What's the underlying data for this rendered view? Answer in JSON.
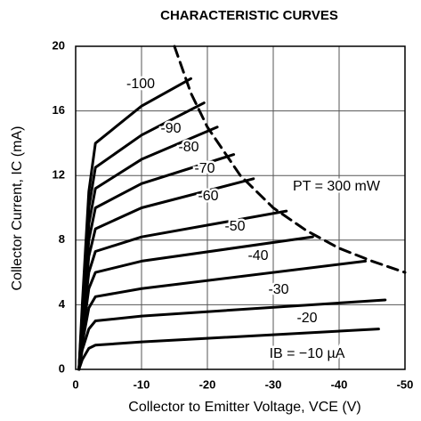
{
  "chart_data": {
    "type": "line",
    "title": "CHARACTERISTIC CURVES",
    "x_label": "Collector to Emitter Voltage, VCE (V)",
    "y_label": "Collector Current, IC (mA)",
    "xlim": [
      0,
      -50
    ],
    "xticks": [
      0,
      -10,
      -20,
      -30,
      -40,
      -50
    ],
    "ylim": [
      0,
      20
    ],
    "yticks": [
      0,
      4,
      8,
      12,
      16,
      20
    ],
    "grid": true,
    "series": [
      {
        "name": "-100",
        "color": "#000000",
        "x": [
          -0.5,
          -1,
          -2,
          -3,
          -10,
          -17.5
        ],
        "values": [
          0,
          4,
          11,
          14,
          16.3,
          18
        ]
      },
      {
        "name": "-90",
        "color": "#000000",
        "x": [
          -0.5,
          -1,
          -2,
          -3,
          -10,
          -19.5
        ],
        "values": [
          0,
          3.5,
          10,
          12.5,
          14.5,
          16.5
        ]
      },
      {
        "name": "-80",
        "color": "#000000",
        "x": [
          -0.5,
          -1,
          -2,
          -3,
          -10,
          -21.5
        ],
        "values": [
          0,
          3.2,
          9,
          11.2,
          13,
          15
        ]
      },
      {
        "name": "-70",
        "color": "#000000",
        "x": [
          -0.5,
          -1,
          -2,
          -3,
          -10,
          -24
        ],
        "values": [
          0,
          3,
          8,
          10,
          11.5,
          13.3
        ]
      },
      {
        "name": "-60",
        "color": "#000000",
        "x": [
          -0.5,
          -1,
          -2,
          -3,
          -10,
          -27
        ],
        "values": [
          0,
          2.7,
          7,
          8.7,
          10,
          11.8
        ]
      },
      {
        "name": "-50",
        "color": "#000000",
        "x": [
          -0.5,
          -1,
          -2,
          -3,
          -10,
          -32
        ],
        "values": [
          0,
          2.4,
          6,
          7.3,
          8.2,
          9.8
        ]
      },
      {
        "name": "-40",
        "color": "#000000",
        "x": [
          -0.5,
          -1,
          -2,
          -3,
          -10,
          -36
        ],
        "values": [
          0,
          2,
          5,
          6,
          6.7,
          8.2
        ]
      },
      {
        "name": "-30",
        "color": "#000000",
        "x": [
          -0.5,
          -1,
          -2,
          -3,
          -10,
          -44
        ],
        "values": [
          0,
          1.6,
          3.8,
          4.5,
          5,
          6.7
        ]
      },
      {
        "name": "-20",
        "color": "#000000",
        "x": [
          -0.5,
          -1,
          -2,
          -3,
          -10,
          -47
        ],
        "values": [
          0,
          1.2,
          2.5,
          3,
          3.3,
          4.3
        ]
      },
      {
        "name": "IB = −10 µA",
        "color": "#000000",
        "x": [
          -0.5,
          -1,
          -2,
          -3,
          -10,
          -46
        ],
        "values": [
          0,
          0.6,
          1.3,
          1.5,
          1.7,
          2.5
        ]
      },
      {
        "name": "PT = 300 mW",
        "color": "#000000",
        "dashed": true,
        "x": [
          -15,
          -17.5,
          -20,
          -25,
          -30,
          -35,
          -40,
          -45,
          -50
        ],
        "values": [
          20,
          17.1,
          15,
          12,
          10,
          8.6,
          7.5,
          6.7,
          6
        ]
      }
    ]
  }
}
